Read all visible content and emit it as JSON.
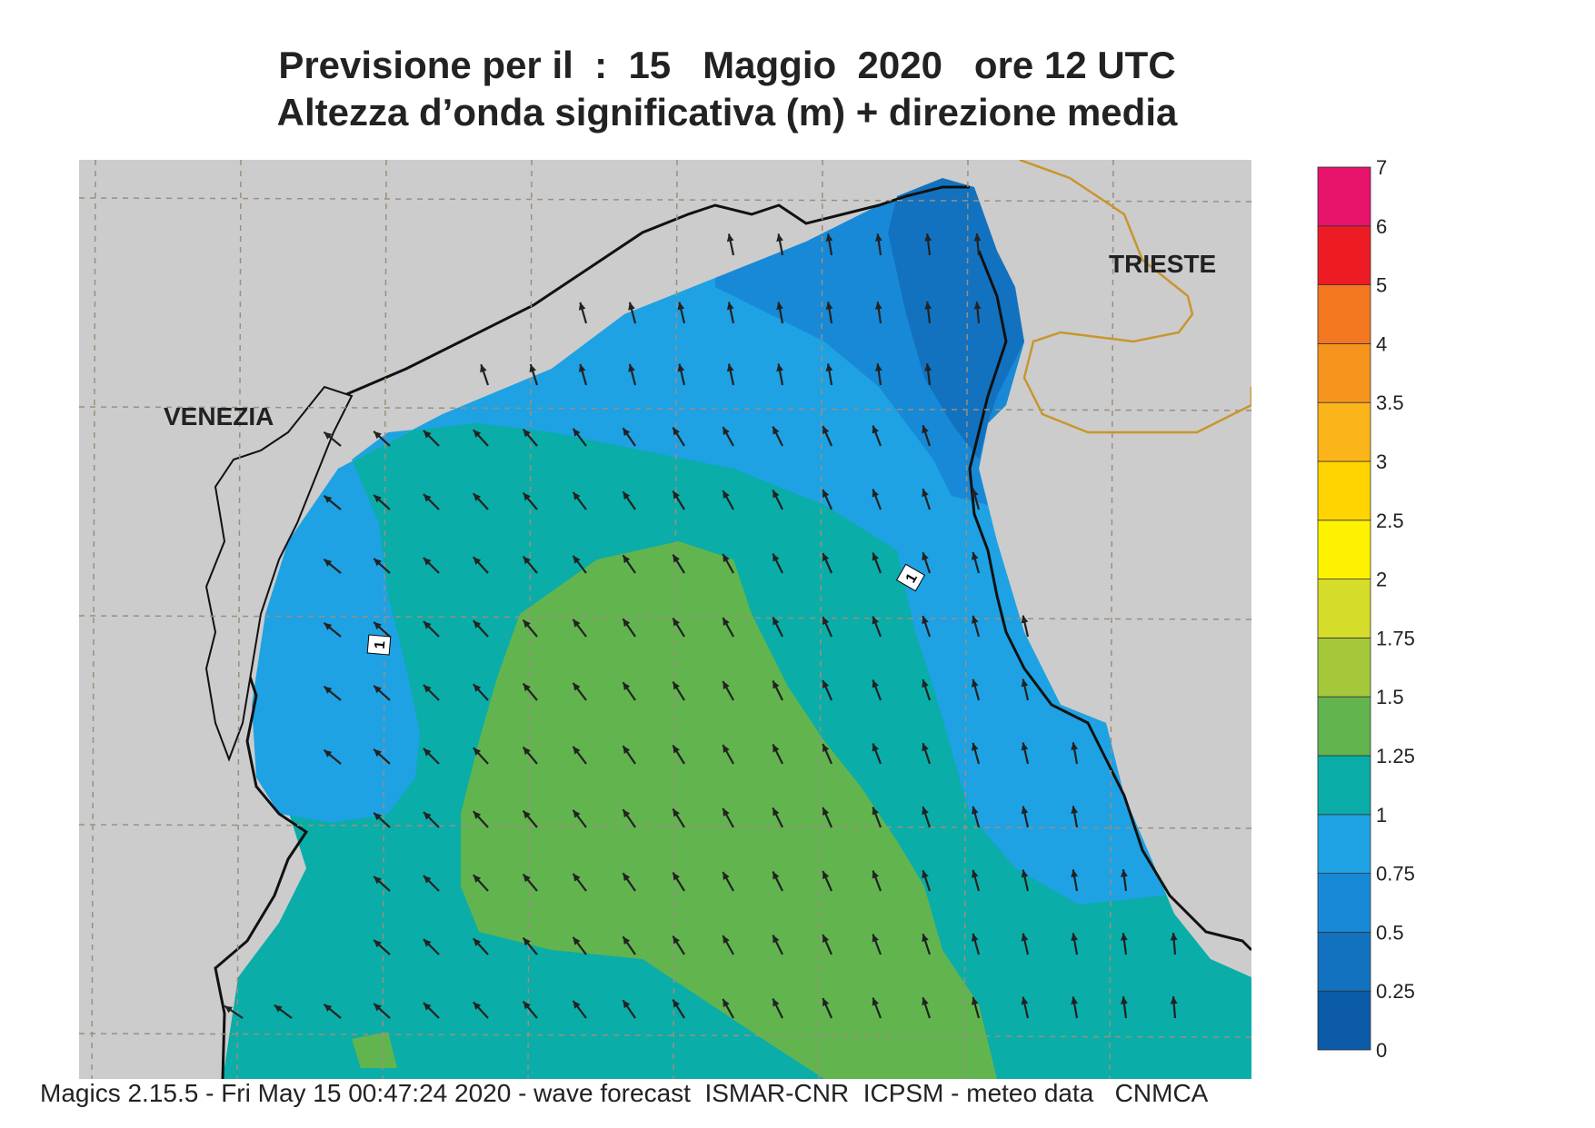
{
  "title": {
    "line1": "Previsione per il  :  15   Maggio  2020   ore 12 UTC",
    "line2": "Altezza d’onda significativa (m) + direzione media"
  },
  "map": {
    "cities": [
      {
        "name": "VENEZIA"
      },
      {
        "name": "TRIESTE"
      }
    ],
    "contour_labels": [
      "1",
      "1"
    ],
    "colors": {
      "land": "#cccccc",
      "coast": "#111111",
      "border": "#c8962e",
      "grid": "#9a8f80",
      "arrow": "#222222"
    },
    "wave_direction": "north-west"
  },
  "legend": {
    "levels": [
      "0",
      "0.25",
      "0.5",
      "0.75",
      "1",
      "1.25",
      "1.5",
      "1.75",
      "2",
      "2.5",
      "3",
      "3.5",
      "4",
      "5",
      "6",
      "7"
    ],
    "colors": [
      "#0b5aa8",
      "#1272c0",
      "#1889d6",
      "#1ea2e4",
      "#0aada8",
      "#62b54e",
      "#a4c83a",
      "#d6dc2a",
      "#fff200",
      "#ffd400",
      "#fbb41a",
      "#f7941d",
      "#f47721",
      "#ed1c24",
      "#e8136b"
    ]
  },
  "footer": "Magics 2.15.5 - Fri May 15 00:47:24 2020 - wave forecast  ISMAR-CNR  ICPSM - meteo data   CNMCA"
}
